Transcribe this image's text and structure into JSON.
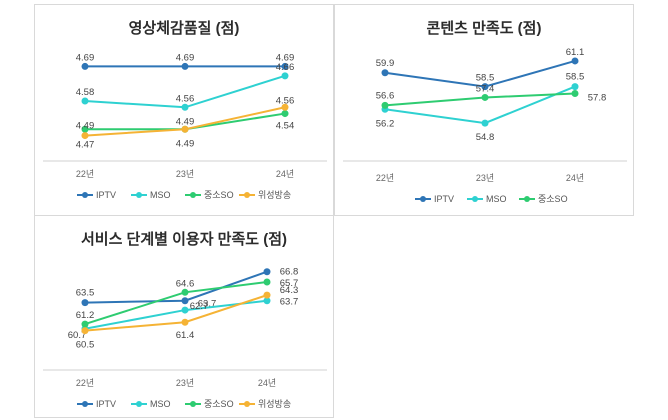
{
  "chart_data": [
    {
      "type": "line",
      "title": "영상체감품질 (점)",
      "categories": [
        "22년",
        "23년",
        "24년"
      ],
      "series": [
        {
          "name": "IPTV",
          "color": "#2e75b6",
          "values": [
            4.69,
            4.69,
            4.69
          ]
        },
        {
          "name": "MSO",
          "color": "#2ed1d1",
          "values": [
            4.58,
            4.56,
            4.66
          ]
        },
        {
          "name": "중소SO",
          "color": "#2ecc71",
          "values": [
            4.49,
            4.49,
            4.54
          ]
        },
        {
          "name": "위성방송",
          "color": "#f5b335",
          "values": [
            4.47,
            4.49,
            4.56
          ]
        }
      ],
      "ylim": [
        4.44,
        4.72
      ],
      "grid": false,
      "legend": "bottom"
    },
    {
      "type": "line",
      "title": "콘텐츠 만족도 (점)",
      "categories": [
        "22년",
        "23년",
        "24년"
      ],
      "series": [
        {
          "name": "IPTV",
          "color": "#2e75b6",
          "values": [
            59.9,
            58.5,
            61.1
          ]
        },
        {
          "name": "MSO",
          "color": "#2ed1d1",
          "values": [
            56.2,
            54.8,
            58.5
          ]
        },
        {
          "name": "중소SO",
          "color": "#2ecc71",
          "values": [
            56.6,
            57.4,
            57.8
          ]
        }
      ],
      "ylim": [
        54.0,
        61.5
      ],
      "grid": false,
      "legend": "bottom"
    },
    {
      "type": "line",
      "title": "서비스 단계별 이용자 만족도 (점)",
      "categories": [
        "22년",
        "23년",
        "24년"
      ],
      "series": [
        {
          "name": "IPTV",
          "color": "#2e75b6",
          "values": [
            63.5,
            63.7,
            66.8
          ]
        },
        {
          "name": "MSO",
          "color": "#2ed1d1",
          "values": [
            60.7,
            62.7,
            63.7
          ]
        },
        {
          "name": "중소SO",
          "color": "#2ecc71",
          "values": [
            61.2,
            64.6,
            65.7
          ]
        },
        {
          "name": "위성방송",
          "color": "#f5b335",
          "values": [
            60.5,
            61.4,
            64.3
          ]
        }
      ],
      "ylim": [
        59.5,
        67.2
      ],
      "grid": false,
      "legend": "bottom"
    }
  ]
}
